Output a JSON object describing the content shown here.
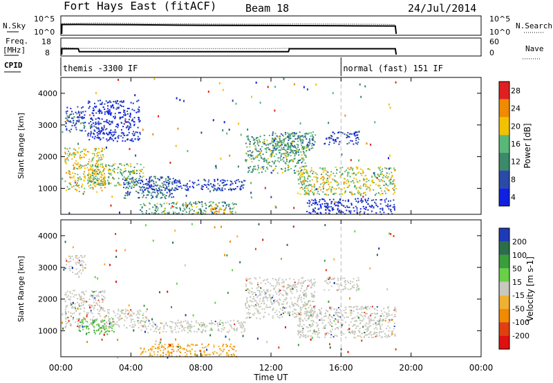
{
  "header": {
    "title": "Fort Hays East (fitACF)",
    "beam": "Beam 18",
    "date": "24/Jul/2014"
  },
  "labels": {
    "nsky": "N.Sky",
    "nsearch": "N.Search",
    "freq_top": "Freq.",
    "freq_unit": "[MHz]",
    "nave": "Nave",
    "cpid": "CPID",
    "y_tick_10_5": "10^5",
    "y_tick_10_0": "10^0"
  },
  "cpid_segments": [
    {
      "name": "themis -3300 IF",
      "start_hour": 0,
      "end_hour": 16
    },
    {
      "name": "normal (fast) 151 IF",
      "start_hour": 16,
      "end_hour": 19.2
    }
  ],
  "chart_data": [
    {
      "type": "line",
      "panel": "noise",
      "yticks_left": [
        "10^5",
        "10^0"
      ],
      "yticks_right": [
        "10^5",
        "10^0"
      ],
      "series": [
        {
          "name": "N.Sky",
          "x": [
            0.05,
            0.06,
            1,
            4,
            8,
            12,
            16,
            19.1,
            19.15
          ],
          "y": [
            1,
            3500,
            3800,
            3000,
            1800,
            1500,
            1200,
            1000,
            1
          ]
        },
        {
          "name": "N.Search",
          "x": [
            0.06,
            2,
            6,
            10,
            14,
            18,
            19.1
          ],
          "y": [
            2500,
            4000,
            2200,
            1500,
            1800,
            1400,
            1100
          ]
        }
      ]
    },
    {
      "type": "line",
      "panel": "freq",
      "yticks_left": [
        "18",
        "8"
      ],
      "yticks_right": [
        "60",
        "0"
      ],
      "series": [
        {
          "name": "Freq.",
          "x": [
            0.05,
            0.06,
            1.0,
            1.05,
            13.0,
            13.05,
            19.1,
            19.15
          ],
          "y": [
            8,
            13,
            13,
            10.5,
            10.5,
            13,
            13,
            8
          ]
        },
        {
          "name": "Nave",
          "x": [
            0.06,
            1.05,
            4,
            8,
            12,
            13.05,
            16,
            19.1
          ],
          "y": [
            36,
            32,
            31,
            31,
            31,
            32,
            31,
            30
          ]
        }
      ]
    },
    {
      "type": "heatmap",
      "panel": "power",
      "ylabel": "Slant Range [km]",
      "yticks": [
        1000,
        2000,
        3000,
        4000
      ],
      "ylim": [
        180,
        4500
      ],
      "colorbar_label": "Power [dB]",
      "colorbar_ticks": [
        4,
        8,
        12,
        16,
        20,
        24,
        28
      ],
      "colors": [
        "#1020e0",
        "#2a4aa8",
        "#3b8a6a",
        "#58b878",
        "#f2c200",
        "#f08a00",
        "#e02020"
      ],
      "regions": [
        {
          "t0": 0.2,
          "t1": 2.5,
          "r0": 900,
          "r1": 2300,
          "power": 20
        },
        {
          "t0": 0.2,
          "t1": 1.4,
          "r0": 2800,
          "r1": 3600,
          "power": 8
        },
        {
          "t0": 1.5,
          "t1": 4.7,
          "r0": 1100,
          "r1": 1800,
          "power": 16
        },
        {
          "t0": 3.5,
          "t1": 6.5,
          "r0": 700,
          "r1": 1400,
          "power": 10
        },
        {
          "t0": 4.5,
          "t1": 10.5,
          "r0": 950,
          "r1": 1300,
          "power": 6
        },
        {
          "t0": 4.5,
          "t1": 10.0,
          "r0": 200,
          "r1": 600,
          "power": 14
        },
        {
          "t0": 8.5,
          "t1": 9.8,
          "r0": 250,
          "r1": 450,
          "power": 22
        },
        {
          "t0": 10.5,
          "t1": 14.0,
          "r0": 1500,
          "r1": 2700,
          "power": 14
        },
        {
          "t0": 12.0,
          "t1": 14.5,
          "r0": 2100,
          "r1": 2800,
          "power": 12
        },
        {
          "t0": 13.5,
          "t1": 19.1,
          "r0": 800,
          "r1": 1700,
          "power": 18
        },
        {
          "t0": 15.0,
          "t1": 17.0,
          "r0": 2400,
          "r1": 2800,
          "power": 6
        },
        {
          "t0": 14.0,
          "t1": 19.1,
          "r0": 200,
          "r1": 700,
          "power": 5
        },
        {
          "t0": 1.5,
          "t1": 4.5,
          "r0": 2500,
          "r1": 3800,
          "power": 4
        }
      ]
    },
    {
      "type": "heatmap",
      "panel": "velocity",
      "ylabel": "Slant Range [km]",
      "yticks": [
        1000,
        2000,
        3000,
        4000
      ],
      "ylim": [
        180,
        4500
      ],
      "colorbar_label": "Velocity [m s-1]",
      "colorbar_ticks": [
        200,
        100,
        50,
        15,
        -15,
        -50,
        -100,
        -200
      ],
      "colors": [
        "#1e3ab8",
        "#2a6e4a",
        "#3a9e3a",
        "#68d048",
        "#c8c8c0",
        "#f0b030",
        "#f08a00",
        "#e04010",
        "#e01010"
      ],
      "regions": [
        {
          "t0": 0.2,
          "t1": 2.5,
          "r0": 1100,
          "r1": 2300,
          "v": 0
        },
        {
          "t0": 0.2,
          "t1": 1.4,
          "r0": 2800,
          "r1": 3400,
          "v": 0
        },
        {
          "t0": 1.0,
          "t1": 3.0,
          "r0": 900,
          "r1": 1400,
          "v": 30
        },
        {
          "t0": 2.5,
          "t1": 5.0,
          "r0": 1100,
          "r1": 1700,
          "v": 0
        },
        {
          "t0": 4.5,
          "t1": 10.5,
          "r0": 950,
          "r1": 1350,
          "v": 0
        },
        {
          "t0": 4.5,
          "t1": 10.0,
          "r0": 200,
          "r1": 600,
          "v": -40
        },
        {
          "t0": 10.5,
          "t1": 14.5,
          "r0": 1400,
          "r1": 2700,
          "v": 0
        },
        {
          "t0": 15.0,
          "t1": 17.0,
          "r0": 2300,
          "r1": 2700,
          "v": 0
        },
        {
          "t0": 13.5,
          "t1": 19.1,
          "r0": 800,
          "r1": 1800,
          "v": 0
        }
      ]
    }
  ],
  "x_axis": {
    "label": "Time UT",
    "ticks": [
      "00:00",
      "04:00",
      "08:00",
      "12:00",
      "16:00",
      "20:00",
      "00:00"
    ],
    "range_hours": [
      0,
      24
    ]
  }
}
